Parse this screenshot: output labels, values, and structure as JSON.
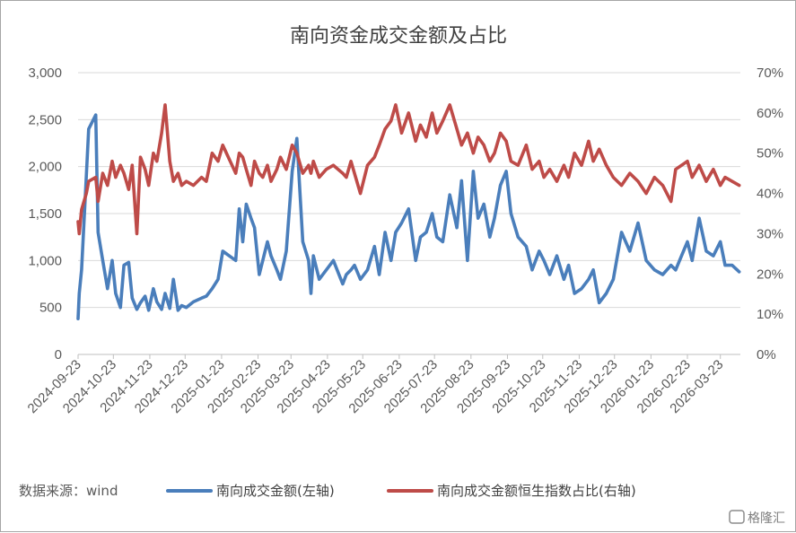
{
  "chart_data": {
    "type": "line",
    "title": "南向资金成交金额及占比",
    "source_label": "数据来源：wind",
    "x_ticks": [
      "2024-09-23",
      "2024-10-23",
      "2024-11-23",
      "2024-12-23",
      "2025-01-23",
      "2025-02-23",
      "2025-03-23",
      "2025-04-23",
      "2025-05-23",
      "2025-06-23",
      "2025-07-23",
      "2025-08-23",
      "2025-09-23",
      "2025-10-23",
      "2025-11-23",
      "2025-12-23",
      "2026-01-23",
      "2026-02-23",
      "2026-03-23"
    ],
    "y_left": {
      "ticks": [
        "0",
        "500",
        "1,000",
        "1,500",
        "2,000",
        "2,500",
        "3,000"
      ],
      "range": [
        0,
        3000
      ]
    },
    "y_right": {
      "ticks": [
        "0%",
        "10%",
        "20%",
        "30%",
        "40%",
        "50%",
        "60%",
        "70%"
      ],
      "range": [
        0,
        70
      ]
    },
    "grid": true,
    "legend_position": "bottom",
    "series": [
      {
        "name": "南向成交金额(左轴)",
        "axis": "left",
        "color": "#4a7ebb",
        "x": [
          "2024-09-23",
          "2024-09-24",
          "2024-09-26",
          "2024-09-30",
          "2024-10-02",
          "2024-10-08",
          "2024-10-10",
          "2024-10-14",
          "2024-10-18",
          "2024-10-22",
          "2024-10-25",
          "2024-10-29",
          "2024-11-01",
          "2024-11-05",
          "2024-11-08",
          "2024-11-12",
          "2024-11-15",
          "2024-11-19",
          "2024-11-22",
          "2024-11-26",
          "2024-11-29",
          "2024-12-03",
          "2024-12-06",
          "2024-12-10",
          "2024-12-13",
          "2024-12-17",
          "2024-12-20",
          "2024-12-24",
          "2024-12-30",
          "2025-01-06",
          "2025-01-10",
          "2025-01-15",
          "2025-01-20",
          "2025-01-24",
          "2025-02-04",
          "2025-02-07",
          "2025-02-10",
          "2025-02-13",
          "2025-02-17",
          "2025-02-20",
          "2025-02-24",
          "2025-02-27",
          "2025-03-03",
          "2025-03-06",
          "2025-03-11",
          "2025-03-14",
          "2025-03-19",
          "2025-03-24",
          "2025-03-28",
          "2025-04-02",
          "2025-04-07",
          "2025-04-09",
          "2025-04-11",
          "2025-04-16",
          "2025-04-22",
          "2025-04-28",
          "2025-05-06",
          "2025-05-09",
          "2025-05-13",
          "2025-05-16",
          "2025-05-21",
          "2025-05-27",
          "2025-06-02",
          "2025-06-06",
          "2025-06-11",
          "2025-06-16",
          "2025-06-20",
          "2025-06-25",
          "2025-07-01",
          "2025-07-07",
          "2025-07-11",
          "2025-07-16",
          "2025-07-21",
          "2025-07-25",
          "2025-07-30",
          "2025-08-05",
          "2025-08-11",
          "2025-08-15",
          "2025-08-20",
          "2025-08-25",
          "2025-08-29",
          "2025-09-03",
          "2025-09-08",
          "2025-09-12",
          "2025-09-17",
          "2025-09-22",
          "2025-09-26",
          "2025-10-02",
          "2025-10-09",
          "2025-10-14",
          "2025-10-20",
          "2025-10-24",
          "2025-10-29",
          "2025-11-04",
          "2025-11-10",
          "2025-11-14",
          "2025-11-19",
          "2025-11-25",
          "2025-12-01",
          "2025-12-05",
          "2025-12-10",
          "2025-12-16",
          "2025-12-22",
          "2025-12-29",
          "2026-01-05",
          "2026-01-12",
          "2026-01-19",
          "2026-01-26",
          "2026-02-02",
          "2026-02-09",
          "2026-02-13",
          "2026-02-23",
          "2026-02-27",
          "2026-03-05",
          "2026-03-11",
          "2026-03-17",
          "2026-03-23",
          "2026-03-27",
          "2026-04-02",
          "2026-04-08"
        ],
        "values": [
          380,
          650,
          900,
          1900,
          2400,
          2550,
          1300,
          1000,
          700,
          1000,
          650,
          500,
          950,
          980,
          600,
          480,
          550,
          620,
          470,
          700,
          560,
          480,
          650,
          490,
          800,
          470,
          520,
          500,
          560,
          600,
          620,
          700,
          800,
          1100,
          1000,
          1550,
          1200,
          1600,
          1450,
          1350,
          850,
          1000,
          1200,
          1050,
          900,
          800,
          1100,
          1950,
          2300,
          1200,
          1000,
          650,
          1050,
          800,
          900,
          1000,
          750,
          850,
          900,
          950,
          800,
          900,
          1150,
          850,
          1300,
          1000,
          1300,
          1400,
          1550,
          1000,
          1250,
          1300,
          1500,
          1250,
          1200,
          1700,
          1350,
          1850,
          1000,
          1950,
          1450,
          1600,
          1250,
          1450,
          1800,
          1950,
          1500,
          1250,
          1150,
          900,
          1100,
          1000,
          850,
          1050,
          800,
          950,
          650,
          700,
          800,
          900,
          550,
          650,
          800,
          1300,
          1100,
          1400,
          1000,
          900,
          850,
          950,
          900,
          1200,
          1000,
          1450,
          1100,
          1050,
          1200,
          950,
          950,
          880
        ]
      },
      {
        "name": "南向成交金额恒生指数占比(右轴)",
        "axis": "right",
        "color": "#be4b48",
        "x": [
          "2024-09-23",
          "2024-09-24",
          "2024-09-26",
          "2024-09-30",
          "2024-10-02",
          "2024-10-08",
          "2024-10-10",
          "2024-10-14",
          "2024-10-18",
          "2024-10-22",
          "2024-10-25",
          "2024-10-29",
          "2024-11-01",
          "2024-11-05",
          "2024-11-08",
          "2024-11-12",
          "2024-11-15",
          "2024-11-19",
          "2024-11-22",
          "2024-11-26",
          "2024-11-29",
          "2024-12-03",
          "2024-12-06",
          "2024-12-10",
          "2024-12-13",
          "2024-12-17",
          "2024-12-20",
          "2024-12-24",
          "2024-12-30",
          "2025-01-06",
          "2025-01-10",
          "2025-01-15",
          "2025-01-20",
          "2025-01-24",
          "2025-02-04",
          "2025-02-07",
          "2025-02-10",
          "2025-02-13",
          "2025-02-17",
          "2025-02-20",
          "2025-02-24",
          "2025-02-27",
          "2025-03-03",
          "2025-03-06",
          "2025-03-11",
          "2025-03-14",
          "2025-03-19",
          "2025-03-24",
          "2025-03-28",
          "2025-04-02",
          "2025-04-07",
          "2025-04-09",
          "2025-04-11",
          "2025-04-16",
          "2025-04-22",
          "2025-04-28",
          "2025-05-06",
          "2025-05-09",
          "2025-05-13",
          "2025-05-16",
          "2025-05-21",
          "2025-05-27",
          "2025-06-02",
          "2025-06-06",
          "2025-06-11",
          "2025-06-16",
          "2025-06-20",
          "2025-06-25",
          "2025-07-01",
          "2025-07-07",
          "2025-07-11",
          "2025-07-16",
          "2025-07-21",
          "2025-07-25",
          "2025-07-30",
          "2025-08-05",
          "2025-08-11",
          "2025-08-15",
          "2025-08-20",
          "2025-08-25",
          "2025-08-29",
          "2025-09-03",
          "2025-09-08",
          "2025-09-12",
          "2025-09-17",
          "2025-09-22",
          "2025-09-26",
          "2025-10-02",
          "2025-10-09",
          "2025-10-14",
          "2025-10-20",
          "2025-10-24",
          "2025-10-29",
          "2025-11-04",
          "2025-11-10",
          "2025-11-14",
          "2025-11-19",
          "2025-11-25",
          "2025-12-01",
          "2025-12-05",
          "2025-12-10",
          "2025-12-16",
          "2025-12-22",
          "2025-12-29",
          "2026-01-05",
          "2026-01-12",
          "2026-01-19",
          "2026-01-26",
          "2026-02-02",
          "2026-02-09",
          "2026-02-13",
          "2026-02-23",
          "2026-02-27",
          "2026-03-05",
          "2026-03-11",
          "2026-03-17",
          "2026-03-23",
          "2026-03-27",
          "2026-04-02",
          "2026-04-08"
        ],
        "values": [
          33,
          30,
          36,
          40,
          43,
          44,
          38,
          45,
          42,
          48,
          44,
          47,
          45,
          41,
          47,
          30,
          49,
          46,
          42,
          50,
          48,
          55,
          62,
          48,
          43,
          45,
          42,
          43,
          42,
          44,
          43,
          50,
          48,
          52,
          45,
          50,
          49,
          46,
          42,
          48,
          45,
          44,
          47,
          43,
          46,
          49,
          46,
          52,
          50,
          45,
          47,
          45,
          48,
          44,
          46,
          47,
          45,
          44,
          48,
          45,
          40,
          47,
          49,
          52,
          56,
          58,
          62,
          55,
          60,
          53,
          57,
          54,
          60,
          55,
          58,
          62,
          56,
          52,
          55,
          50,
          54,
          52,
          48,
          50,
          55,
          53,
          48,
          47,
          52,
          46,
          48,
          44,
          46,
          43,
          47,
          44,
          50,
          47,
          53,
          48,
          51,
          47,
          44,
          42,
          45,
          43,
          40,
          44,
          42,
          38,
          46,
          48,
          44,
          47,
          43,
          46,
          42,
          44,
          43,
          42
        ]
      }
    ]
  },
  "watermark": "格隆汇"
}
